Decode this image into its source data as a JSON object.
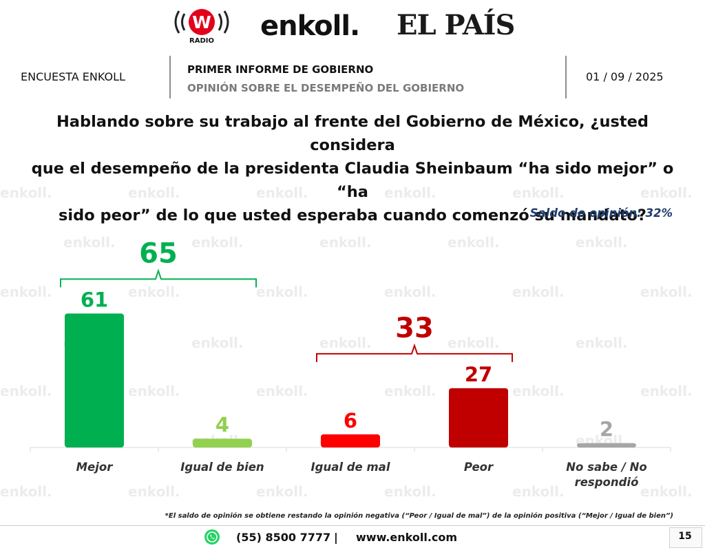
{
  "logos": {
    "w_radio_letter": "W",
    "w_radio_text": "RADIO",
    "enkoll": "enkoll.",
    "el_pais": "EL PAÍS"
  },
  "header": {
    "survey_name": "ENCUESTA ENKOLL",
    "title": "PRIMER INFORME DE GOBIERNO",
    "subtitle": "OPINIÓN SOBRE EL DESEMPEÑO DEL GOBIERNO",
    "date": "01 / 09 / 2025"
  },
  "question_lines": [
    "Hablando sobre su trabajo al frente del Gobierno de México, ¿usted considera",
    "que el desempeño de la presidenta Claudia Sheinbaum “ha sido mejor” o “ha",
    "sido peor” de lo que usted esperaba cuando comenzó su mandato?"
  ],
  "balance_label": "Saldo de opinión: 32%",
  "watermark_text": "enkoll.",
  "chart_data": {
    "type": "bar",
    "categories": [
      "Mejor",
      "Igual de bien",
      "Igual de mal",
      "Peor",
      "No sabe / No respondió"
    ],
    "category_lines": [
      [
        "Mejor"
      ],
      [
        "Igual de bien"
      ],
      [
        "Igual de mal"
      ],
      [
        "Peor"
      ],
      [
        "No sabe / No",
        "respondió"
      ]
    ],
    "values": [
      61,
      4,
      6,
      27,
      2
    ],
    "colors": [
      "#00b050",
      "#92d050",
      "#ff0000",
      "#c00000",
      "#a6a6a6"
    ],
    "label_colors": [
      "#00b050",
      "#92d050",
      "#ff0000",
      "#c00000",
      "#a6a6a6"
    ],
    "ylim": [
      0,
      100
    ],
    "groups": [
      {
        "label": "65",
        "value": 65,
        "from": 0,
        "to": 1,
        "color": "#00b050"
      },
      {
        "label": "33",
        "value": 33,
        "from": 2,
        "to": 3,
        "color": "#c00000"
      }
    ],
    "title": "",
    "xlabel": "",
    "ylabel": ""
  },
  "footnote": "*El saldo de opinión se obtiene restando la opinión negativa (“Peor / Igual de mal”) de la opinión positiva (“Mejor / Igual de bien”)",
  "footer": {
    "whatsapp_icon": "whatsapp-icon",
    "phone": "(55) 8500 7777",
    "separator": "|",
    "website": "www.enkoll.com",
    "page_number": "15"
  }
}
